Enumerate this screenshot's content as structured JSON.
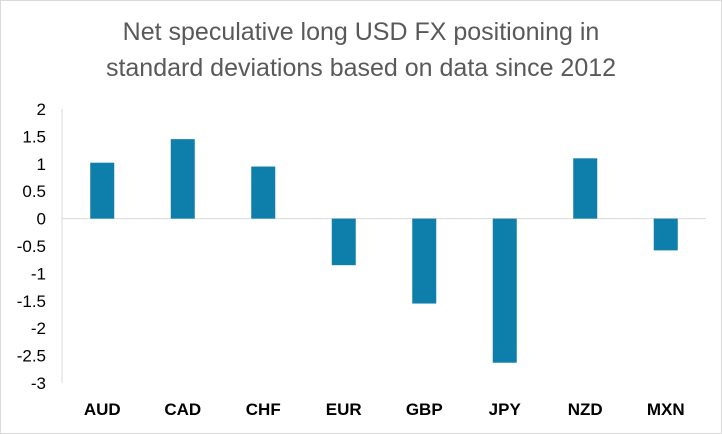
{
  "chart_data": {
    "type": "bar",
    "title_lines": [
      "Net speculative long USD FX positioning in",
      "standard deviations based on data since 2012"
    ],
    "xlabel": "",
    "ylabel": "",
    "categories": [
      "AUD",
      "CAD",
      "CHF",
      "EUR",
      "GBP",
      "JPY",
      "NZD",
      "MXN"
    ],
    "values": [
      1.02,
      1.45,
      0.95,
      -0.85,
      -1.55,
      -2.63,
      1.1,
      -0.58
    ],
    "ylim": [
      -3,
      2
    ],
    "y_ticks": [
      "2",
      "1.5",
      "1",
      "0.5",
      "0",
      "-0.5",
      "-1",
      "-1.5",
      "-2",
      "-2.5",
      "-3"
    ],
    "grid": false,
    "legend": "none",
    "colors": {
      "bar": "#0e7eab",
      "axis": "#d9d9d9"
    }
  }
}
